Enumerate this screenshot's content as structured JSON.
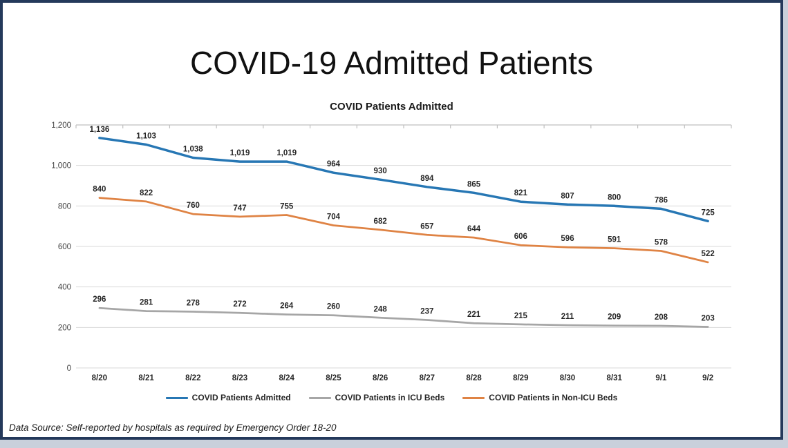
{
  "page_title": "COVID-19 Admitted Patients",
  "chart_data": {
    "type": "line",
    "title": "COVID Patients Admitted",
    "categories": [
      "8/20",
      "8/21",
      "8/22",
      "8/23",
      "8/24",
      "8/25",
      "8/26",
      "8/27",
      "8/28",
      "8/29",
      "8/30",
      "8/31",
      "9/1",
      "9/2"
    ],
    "series": [
      {
        "name": "COVID Patients Admitted",
        "color": "#2777b4",
        "values": [
          1136,
          1103,
          1038,
          1019,
          1019,
          964,
          930,
          894,
          865,
          821,
          807,
          800,
          786,
          725
        ]
      },
      {
        "name": "COVID Patients in ICU Beds",
        "color": "#a6a6a6",
        "values": [
          296,
          281,
          278,
          272,
          264,
          260,
          248,
          237,
          221,
          215,
          211,
          209,
          208,
          203
        ]
      },
      {
        "name": "COVID Patients in Non-ICU Beds",
        "color": "#df8344",
        "values": [
          840,
          822,
          760,
          747,
          755,
          704,
          682,
          657,
          644,
          606,
          596,
          591,
          578,
          522
        ]
      }
    ],
    "xlabel": "",
    "ylabel": "",
    "ylim": [
      0,
      1200
    ],
    "ytick_step": 200,
    "ytick_labels": [
      "0",
      "200",
      "400",
      "600",
      "800",
      "1,000",
      "1,200"
    ],
    "grid": true,
    "data_labels": true,
    "legend_position": "bottom"
  },
  "footer": {
    "text": "Data Source: Self-reported by hospitals as required by Emergency Order 18-20"
  },
  "colors": {
    "frame_border": "#24395b",
    "gridline": "#d9d9d9",
    "axis": "#bfbfbf",
    "axis_text": "#3f3f3f",
    "label_text": "#262626"
  }
}
